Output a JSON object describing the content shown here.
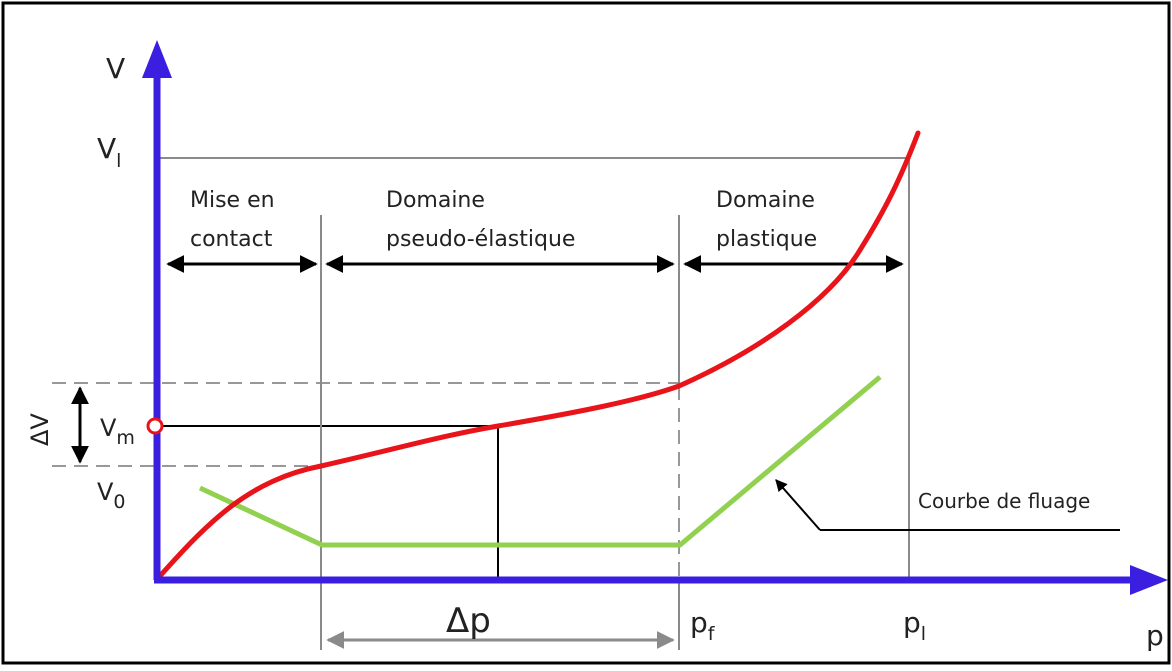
{
  "axes": {
    "y_label": "V",
    "x_label": "p",
    "y_color": "#3a1fe0",
    "x_color": "#3a1fe0"
  },
  "y_marks": {
    "vl": {
      "main": "V",
      "sub": "l"
    },
    "vm": {
      "main": "V",
      "sub": "m"
    },
    "v0": {
      "main": "V",
      "sub": "0"
    },
    "delta_v": "ΔV"
  },
  "x_marks": {
    "pf": {
      "main": "p",
      "sub": "f"
    },
    "pl": {
      "main": "p",
      "sub": "l"
    },
    "delta_p": "Δp"
  },
  "zones": [
    {
      "line1": "Mise en",
      "line2": "contact"
    },
    {
      "line1": "Domaine",
      "line2": "pseudo-élastique"
    },
    {
      "line1": "Domaine",
      "line2": "plastique"
    }
  ],
  "creep_label": "Courbe de fluage",
  "colors": {
    "pressiometric_curve": "#e8141a",
    "creep_curve": "#92d050",
    "gridline": "#8a8a8a",
    "vm_marker": "#e8141a"
  }
}
